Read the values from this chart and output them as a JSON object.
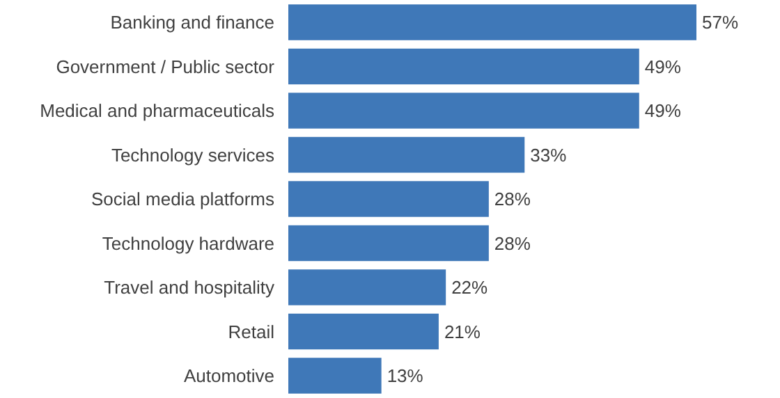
{
  "chart_data": {
    "type": "bar",
    "orientation": "horizontal",
    "categories": [
      "Banking and finance",
      "Government / Public sector",
      "Medical and pharmaceuticals",
      "Technology services",
      "Social media platforms",
      "Technology hardware",
      "Travel and hospitality",
      "Retail",
      "Automotive"
    ],
    "values": [
      57,
      49,
      49,
      33,
      28,
      28,
      22,
      21,
      13
    ],
    "value_labels": [
      "57%",
      "49%",
      "49%",
      "33%",
      "28%",
      "28%",
      "22%",
      "21%",
      "13%"
    ],
    "color": "#3f78b8"
  }
}
